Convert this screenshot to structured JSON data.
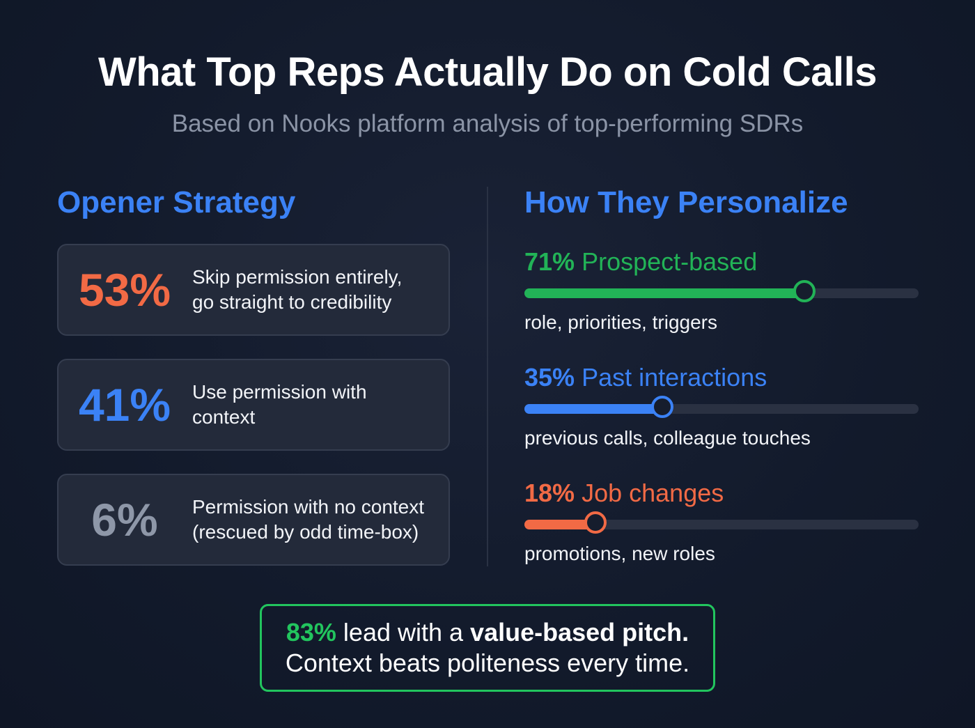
{
  "header": {
    "title": "What Top Reps Actually Do on Cold Calls",
    "subtitle": "Based on Nooks platform analysis of top-performing SDRs"
  },
  "opener": {
    "heading": "Opener Strategy",
    "cards": [
      {
        "pct": "53%",
        "value": 53,
        "color": "#f26a45",
        "line1": "Skip permission entirely,",
        "line2": "go straight to credibility"
      },
      {
        "pct": "41%",
        "value": 41,
        "color": "#3b82f6",
        "line1": "Use permission with",
        "line2": "context"
      },
      {
        "pct": "6%",
        "value": 6,
        "color": "#8e97a8",
        "line1": "Permission with no context",
        "line2": "(rescued by odd time-box)"
      }
    ]
  },
  "personalize": {
    "heading": "How They Personalize",
    "metrics": [
      {
        "pct": "71%",
        "value": 71,
        "label": "Prospect-based",
        "detail": "role, priorities, triggers",
        "color": "#22b357"
      },
      {
        "pct": "35%",
        "value": 35,
        "label": "Past interactions",
        "detail": "previous calls, colleague touches",
        "color": "#3b82f6"
      },
      {
        "pct": "18%",
        "value": 18,
        "label": "Job changes",
        "detail": "promotions, new roles",
        "color": "#f26a45"
      }
    ]
  },
  "callout": {
    "pct": "83%",
    "pct_color": "#22c55e",
    "text_a": " lead with a ",
    "emphasis": "value-based pitch.",
    "line2": "Context beats politeness every time."
  }
}
